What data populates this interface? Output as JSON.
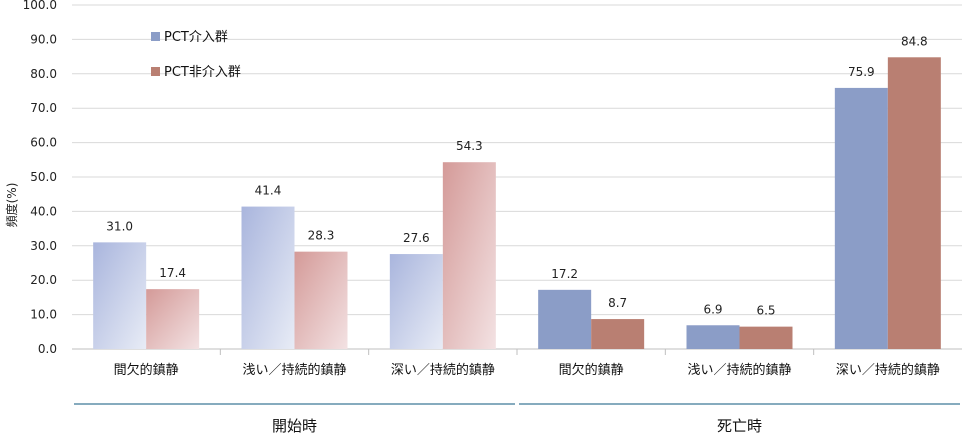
{
  "chart_data": {
    "type": "bar",
    "ylabel": "頻度(%)",
    "ylim": [
      0,
      100
    ],
    "yticks": [
      "0.0",
      "10.0",
      "20.0",
      "30.0",
      "40.0",
      "50.0",
      "60.0",
      "70.0",
      "80.0",
      "90.0",
      "100.0"
    ],
    "grid": true,
    "legend_position": "top-left",
    "categories": [
      "間欠的鎮静",
      "浅い／持続的鎮静",
      "深い／持続的鎮静",
      "間欠的鎮静",
      "浅い／持続的鎮静",
      "深い／持続的鎮静"
    ],
    "groups": [
      {
        "label": "開始時",
        "categories": [
          0,
          1,
          2
        ]
      },
      {
        "label": "死亡時",
        "categories": [
          3,
          4,
          5
        ]
      }
    ],
    "series": [
      {
        "name": "PCT介入群",
        "values": [
          31.0,
          41.4,
          27.6,
          17.2,
          6.9,
          75.9
        ],
        "labels": [
          "31.0",
          "41.4",
          "27.6",
          "17.2",
          "6.9",
          "75.9"
        ],
        "color": "#8B9DC7"
      },
      {
        "name": "PCT非介入群",
        "values": [
          17.4,
          28.3,
          54.3,
          8.7,
          6.5,
          84.8
        ],
        "labels": [
          "17.4",
          "28.3",
          "54.3",
          "8.7",
          "6.5",
          "84.8"
        ],
        "color": "#B97F72"
      }
    ]
  }
}
